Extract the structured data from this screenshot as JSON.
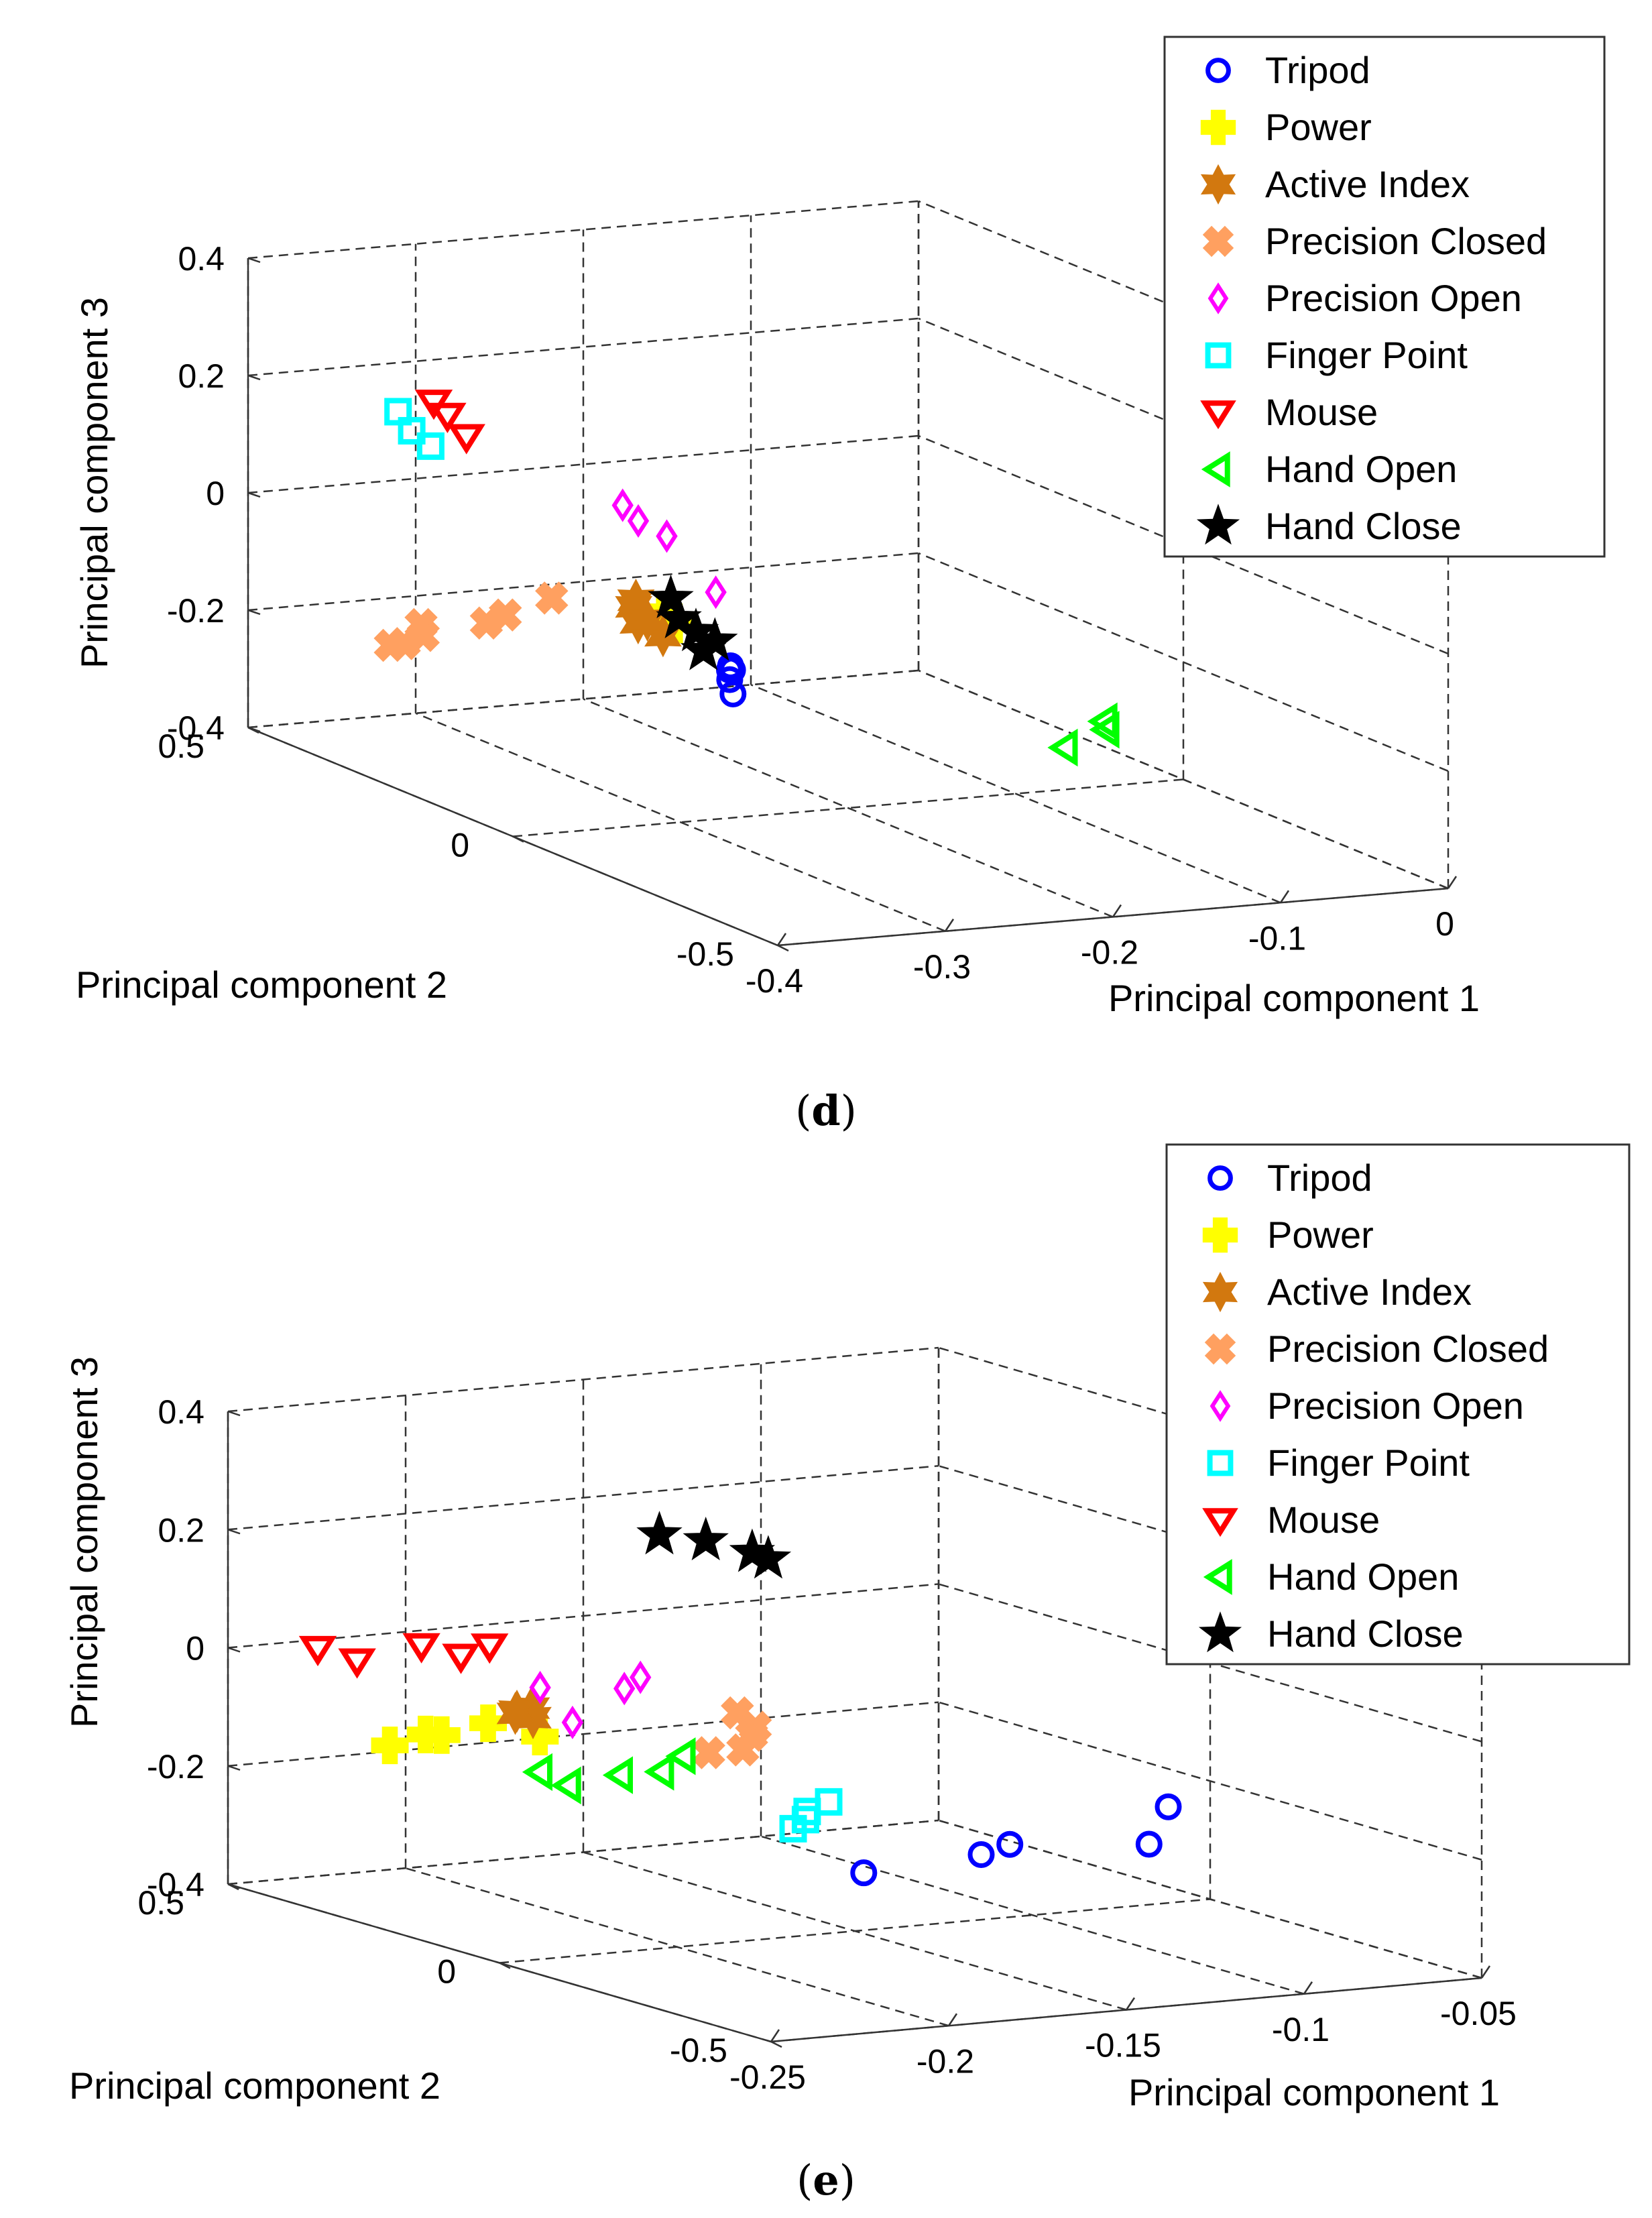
{
  "chart_data": [
    {
      "type": "scatter",
      "panel_label": "d",
      "xlabel": "Principal component 1",
      "ylabel": "Principal component 2",
      "zlabel": "Principal component 3",
      "xlim": [
        -0.4,
        0
      ],
      "ylim": [
        -0.5,
        0.5
      ],
      "zlim": [
        -0.4,
        0.4
      ],
      "xticks": [
        "-0.4",
        "-0.3",
        "-0.2",
        "-0.1",
        "0"
      ],
      "yticks": [
        "-0.5",
        "0",
        "0.5"
      ],
      "zticks": [
        "-0.4",
        "-0.2",
        "0",
        "0.2",
        "0.4"
      ],
      "legend_position": "top-right",
      "series": [
        {
          "name": "Tripod",
          "marker": "circle",
          "color": "#0000ff",
          "points": [
            [
              -0.275,
              -0.02,
              -0.18
            ],
            [
              -0.258,
              0.04,
              -0.182
            ],
            [
              -0.25,
              0.06,
              -0.175
            ],
            [
              -0.255,
              0.05,
              -0.17
            ],
            [
              -0.248,
              0.07,
              -0.172
            ]
          ]
        },
        {
          "name": "Power",
          "marker": "plus",
          "color": "#ffff00",
          "points": [
            [
              -0.275,
              0.1,
              -0.1
            ],
            [
              -0.272,
              0.12,
              -0.092
            ],
            [
              -0.278,
              0.08,
              -0.098
            ]
          ]
        },
        {
          "name": "Active Index",
          "marker": "hexagram",
          "color": "#d2780f",
          "points": [
            [
              -0.295,
              0.1,
              -0.06
            ],
            [
              -0.29,
              0.12,
              -0.08
            ],
            [
              -0.282,
              0.09,
              -0.12
            ],
            [
              -0.3,
              0.08,
              -0.09
            ],
            [
              -0.285,
              0.11,
              -0.1
            ]
          ]
        },
        {
          "name": "Precision Closed",
          "marker": "x",
          "color": "#ffa060",
          "points": [
            [
              -0.37,
              0.3,
              -0.19
            ],
            [
              -0.365,
              0.28,
              -0.17
            ],
            [
              -0.36,
              0.3,
              -0.16
            ],
            [
              -0.335,
              0.22,
              -0.12
            ],
            [
              -0.32,
              0.18,
              -0.08
            ],
            [
              -0.34,
              0.24,
              -0.14
            ],
            [
              -0.372,
              0.32,
              -0.2
            ]
          ]
        },
        {
          "name": "Precision Open",
          "marker": "diamond",
          "color": "#ff00ff",
          "points": [
            [
              -0.265,
              0.22,
              0.05
            ],
            [
              -0.262,
              0.2,
              0.03
            ],
            [
              -0.245,
              0.2,
              0.0
            ],
            [
              -0.26,
              0.06,
              -0.04
            ]
          ]
        },
        {
          "name": "Finger Point",
          "marker": "square",
          "color": "#00ffff",
          "points": [
            [
              -0.32,
              0.47,
              0.13
            ],
            [
              -0.31,
              0.44,
              0.08
            ],
            [
              -0.315,
              0.46,
              0.1
            ]
          ]
        },
        {
          "name": "Mouse",
          "marker": "triangle-down",
          "color": "#ff0000",
          "points": [
            [
              -0.305,
              0.45,
              0.15
            ],
            [
              -0.3,
              0.44,
              0.13
            ],
            [
              -0.295,
              0.42,
              0.1
            ]
          ]
        },
        {
          "name": "Hand Open",
          "marker": "triangle-left",
          "color": "#00ff00",
          "points": [
            [
              -0.14,
              -0.22,
              -0.23
            ],
            [
              -0.11,
              -0.2,
              -0.2
            ],
            [
              -0.112,
              -0.21,
              -0.21
            ]
          ]
        },
        {
          "name": "Hand Close",
          "marker": "star",
          "color": "#000000",
          "points": [
            [
              -0.29,
              0.05,
              -0.04
            ],
            [
              -0.282,
              0.06,
              -0.08
            ],
            [
              -0.275,
              0.05,
              -0.1
            ],
            [
              -0.28,
              0.02,
              -0.12
            ],
            [
              -0.27,
              0.03,
              -0.11
            ]
          ]
        }
      ]
    },
    {
      "type": "scatter",
      "panel_label": "e",
      "xlabel": "Principal component 1",
      "ylabel": "Principal component 2",
      "zlabel": "Principal component 3",
      "xlim": [
        -0.25,
        -0.05
      ],
      "ylim": [
        -0.5,
        0.5
      ],
      "zlim": [
        -0.4,
        0.4
      ],
      "xticks": [
        "-0.25",
        "-0.2",
        "-0.15",
        "-0.1",
        "-0.05"
      ],
      "yticks": [
        "-0.5",
        "0",
        "0.5"
      ],
      "zticks": [
        "-0.4",
        "-0.2",
        "0",
        "0.2",
        "0.4"
      ],
      "legend_position": "top-right",
      "series": [
        {
          "name": "Tripod",
          "marker": "circle",
          "color": "#0000ff",
          "points": [
            [
              -0.175,
              -0.18,
              -0.24
            ],
            [
              -0.145,
              -0.2,
              -0.22
            ],
            [
              -0.14,
              -0.22,
              -0.2
            ],
            [
              -0.11,
              -0.28,
              -0.2
            ],
            [
              -0.1,
              -0.25,
              -0.15
            ]
          ]
        },
        {
          "name": "Power",
          "marker": "plus",
          "color": "#ffff00",
          "points": [
            [
              -0.235,
              0.3,
              -0.12
            ],
            [
              -0.228,
              0.28,
              -0.1
            ],
            [
              -0.225,
              0.27,
              -0.1
            ],
            [
              -0.215,
              0.25,
              -0.08
            ],
            [
              -0.205,
              0.22,
              -0.1
            ]
          ]
        },
        {
          "name": "Active Index",
          "marker": "hexagram",
          "color": "#d2780f",
          "points": [
            [
              -0.215,
              0.2,
              -0.05
            ],
            [
              -0.212,
              0.19,
              -0.04
            ],
            [
              -0.21,
              0.2,
              -0.06
            ],
            [
              -0.213,
              0.21,
              -0.05
            ]
          ]
        },
        {
          "name": "Precision Closed",
          "marker": "x",
          "color": "#ffa060",
          "points": [
            [
              -0.18,
              0.02,
              -0.02
            ],
            [
              -0.178,
              0.0,
              -0.04
            ],
            [
              -0.176,
              0.02,
              -0.06
            ],
            [
              -0.18,
              0.01,
              -0.08
            ],
            [
              -0.185,
              0.04,
              -0.09
            ]
          ]
        },
        {
          "name": "Precision Open",
          "marker": "diamond",
          "color": "#ff00ff",
          "points": [
            [
              -0.205,
              0.16,
              -0.06
            ],
            [
              -0.195,
              0.13,
              0.0
            ],
            [
              -0.192,
              0.12,
              0.02
            ],
            [
              -0.208,
              0.2,
              -0.01
            ]
          ]
        },
        {
          "name": "Finger Point",
          "marker": "square",
          "color": "#00ffff",
          "points": [
            [
              -0.175,
              -0.05,
              -0.2
            ],
            [
              -0.17,
              -0.04,
              -0.19
            ],
            [
              -0.165,
              -0.05,
              -0.16
            ],
            [
              -0.168,
              -0.03,
              -0.18
            ]
          ]
        },
        {
          "name": "Mouse",
          "marker": "triangle-down",
          "color": "#ff0000",
          "points": [
            [
              -0.24,
              0.4,
              0.02
            ],
            [
              -0.232,
              0.38,
              0.0
            ],
            [
              -0.22,
              0.34,
              0.03
            ],
            [
              -0.215,
              0.3,
              0.02
            ],
            [
              -0.21,
              0.28,
              0.04
            ]
          ]
        },
        {
          "name": "Hand Open",
          "marker": "triangle-left",
          "color": "#00ff00",
          "points": [
            [
              -0.205,
              0.22,
              -0.16
            ],
            [
              -0.2,
              0.2,
              -0.18
            ],
            [
              -0.19,
              0.17,
              -0.16
            ],
            [
              -0.183,
              0.14,
              -0.15
            ],
            [
              -0.18,
              0.12,
              -0.12
            ]
          ]
        },
        {
          "name": "Hand Close",
          "marker": "star",
          "color": "#000000",
          "points": [
            [
              -0.205,
              0.0,
              0.3
            ],
            [
              -0.195,
              -0.02,
              0.29
            ],
            [
              -0.185,
              -0.04,
              0.27
            ],
            [
              -0.182,
              -0.05,
              0.26
            ]
          ]
        }
      ]
    }
  ],
  "captions": [
    "d",
    "e"
  ]
}
